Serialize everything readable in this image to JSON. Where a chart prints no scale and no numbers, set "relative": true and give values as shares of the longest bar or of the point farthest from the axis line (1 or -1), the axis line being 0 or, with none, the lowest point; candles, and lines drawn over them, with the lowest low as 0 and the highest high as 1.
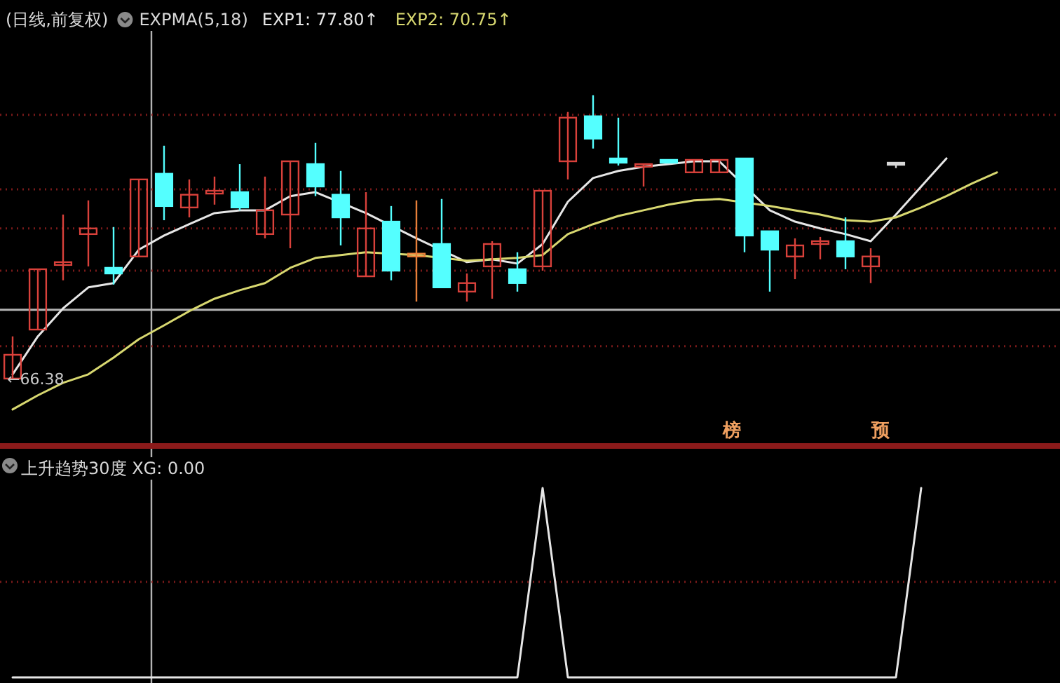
{
  "chart_data": [
    {
      "type": "candlestick",
      "title": "(日线,前复权)",
      "subtitle": "EXPMA(5,18)",
      "relative": true,
      "legend": "top left",
      "categories": [
        null,
        null,
        null,
        null,
        null,
        null,
        null,
        null,
        null,
        null,
        null,
        null,
        null,
        null,
        null,
        null,
        null,
        null,
        null,
        null,
        null,
        null,
        null,
        null,
        null,
        null,
        null,
        null,
        null,
        null,
        null,
        null,
        null,
        null,
        null,
        null,
        null,
        null,
        null,
        null,
        null,
        null
      ],
      "ohlc": [
        [
          0,
          0.149,
          0,
          0.084
        ],
        [
          0.173,
          0.386,
          0.173,
          0.386
        ],
        [
          0.401,
          0.579,
          0.347,
          0.411
        ],
        [
          0.51,
          0.629,
          0.396,
          0.53
        ],
        [
          0.391,
          0.535,
          0.332,
          0.371
        ],
        [
          0.431,
          0.703,
          0.431,
          0.703
        ],
        [
          0.723,
          0.822,
          0.559,
          0.609
        ],
        [
          0.604,
          0.703,
          0.569,
          0.649
        ],
        [
          0.653,
          0.713,
          0.614,
          0.663
        ],
        [
          0.658,
          0.757,
          0.594,
          0.604
        ],
        [
          0.51,
          0.713,
          0.495,
          0.594
        ],
        [
          0.579,
          0.767,
          0.46,
          0.767
        ],
        [
          0.757,
          0.832,
          0.644,
          0.678
        ],
        [
          0.649,
          0.733,
          0.47,
          0.569
        ],
        [
          0.361,
          0.658,
          0.361,
          0.53
        ],
        [
          0.554,
          0.609,
          0.347,
          0.381
        ],
        [
          0.431,
          0.629,
          0.272,
          0.441
        ],
        [
          0.475,
          0.634,
          0.322,
          0.322
        ],
        [
          0.307,
          0.371,
          0.272,
          0.337
        ],
        [
          0.396,
          0.485,
          0.282,
          0.475
        ],
        [
          0.386,
          0.446,
          0.307,
          0.337
        ],
        [
          0.396,
          0.663,
          0.381,
          0.663
        ],
        [
          0.767,
          0.941,
          0.703,
          0.921
        ],
        [
          0.926,
          1,
          0.812,
          0.847
        ],
        [
          0.777,
          0.921,
          0.752,
          0.762
        ],
        [
          0.748,
          0.757,
          0.678,
          0.757
        ],
        [
          0.772,
          0.772,
          0.762,
          0.762
        ],
        [
          0.728,
          0.772,
          0.728,
          0.772
        ],
        [
          0.728,
          0.772,
          0.728,
          0.772
        ],
        [
          0.777,
          0.777,
          0.446,
          0.505
        ],
        [
          0.52,
          0.52,
          0.307,
          0.455
        ],
        [
          0.431,
          0.495,
          0.351,
          0.47
        ],
        [
          0.475,
          0.5,
          0.421,
          0.485
        ],
        [
          0.485,
          0.569,
          0.386,
          0.431
        ],
        [
          0.396,
          0.46,
          0.337,
          0.431
        ],
        [
          0.762,
          0.762,
          0.743,
          0.755
        ],
        null,
        null,
        null,
        null,
        null,
        null
      ],
      "colors": [
        "#d9413b",
        "#d9413b",
        "#d9413b",
        "#d9413b",
        "#54ffff",
        "#d9413b",
        "#54ffff",
        "#d9413b",
        "#d9413b",
        "#54ffff",
        "#d9413b",
        "#d9413b",
        "#54ffff",
        "#54ffff",
        "#d9413b",
        "#54ffff",
        "#e8803a",
        "#54ffff",
        "#d9413b",
        "#d9413b",
        "#54ffff",
        "#d9413b",
        "#d9413b",
        "#54ffff",
        "#54ffff",
        "#d9413b",
        "#54ffff",
        "#d9413b",
        "#d9413b",
        "#54ffff",
        "#54ffff",
        "#d9413b",
        "#d9413b",
        "#54ffff",
        "#d9413b",
        "#d8d8d8",
        null,
        null,
        null,
        null,
        null,
        null
      ],
      "series": [
        {
          "name": "EXP1: 77.80↑",
          "type": "line",
          "color": "#e6e6e6",
          "values": [
            0.015,
            0.149,
            0.248,
            0.322,
            0.337,
            0.455,
            0.505,
            0.545,
            0.584,
            0.594,
            0.594,
            0.644,
            0.658,
            null,
            0.584,
            null,
            0.495,
            null,
            0.411,
            0.421,
            0.406,
            0.475,
            0.624,
            0.708,
            0.733,
            0.748,
            0.757,
            0.767,
            0.767,
            null,
            0.594,
            0.554,
            0.53,
            0.51,
            0.485,
            0.579,
            0.678,
            0.777,
            null,
            null,
            null,
            null
          ]
        },
        {
          "name": "EXP2: 70.75↑",
          "type": "line",
          "color": "#d8d870",
          "values": [
            -0.109,
            -0.059,
            -0.015,
            0.015,
            0.074,
            0.139,
            0.188,
            0.238,
            0.282,
            0.312,
            0.337,
            0.391,
            0.426,
            0.436,
            0.446,
            null,
            0.436,
            null,
            0.416,
            0.421,
            0.426,
            0.436,
            0.51,
            0.545,
            0.574,
            0.594,
            0.614,
            0.629,
            0.634,
            null,
            0.609,
            0.594,
            0.579,
            0.559,
            0.554,
            0.569,
            0.604,
            0.644,
            0.688,
            0.728,
            null,
            null
          ]
        }
      ],
      "ref_lines": [
        {
          "axis": "y",
          "value": 0.931,
          "color": "#7a1a1a",
          "line_style": "dotted"
        },
        {
          "axis": "y",
          "value": 0.668,
          "color": "#7a1a1a",
          "line_style": "dotted"
        },
        {
          "axis": "y",
          "value": 0.53,
          "color": "#7a1a1a",
          "line_style": "dotted"
        },
        {
          "axis": "y",
          "value": 0.381,
          "color": "#7a1a1a",
          "line_style": "dotted"
        },
        {
          "axis": "y",
          "value": 0.114,
          "color": "#7a1a1a",
          "line_style": "dotted"
        },
        {
          "axis": "y",
          "value": 0.243,
          "color": "#b4b4b4",
          "line_style": "solid"
        }
      ],
      "annotations": [
        "←66.38",
        "榜",
        "预"
      ]
    },
    {
      "type": "line",
      "title": "上升趋势30度 XG: 0.00",
      "relative": true,
      "categories": [
        null,
        null,
        null,
        null,
        null,
        null,
        null,
        null,
        null,
        null,
        null,
        null,
        null,
        null,
        null,
        null,
        null,
        null,
        null,
        null,
        null,
        null,
        null,
        null,
        null,
        null,
        null,
        null,
        null,
        null,
        null,
        null,
        null,
        null,
        null,
        null,
        null,
        null,
        null,
        null,
        null,
        null
      ],
      "series": [
        {
          "color": "#e6e6e6",
          "values": [
            0,
            0,
            0,
            0,
            0,
            0,
            0,
            0,
            0,
            0,
            0,
            0,
            0,
            0,
            0,
            0,
            0,
            0,
            0,
            0,
            0,
            1,
            0,
            0,
            0,
            0,
            0,
            0,
            0,
            0,
            0,
            0,
            0,
            0,
            0,
            0,
            1,
            null,
            null,
            null,
            null,
            null
          ]
        }
      ],
      "ref_lines": [
        {
          "axis": "y",
          "value": 0.504,
          "color": "#7a1a1a",
          "line_style": "dotted"
        }
      ]
    }
  ]
}
